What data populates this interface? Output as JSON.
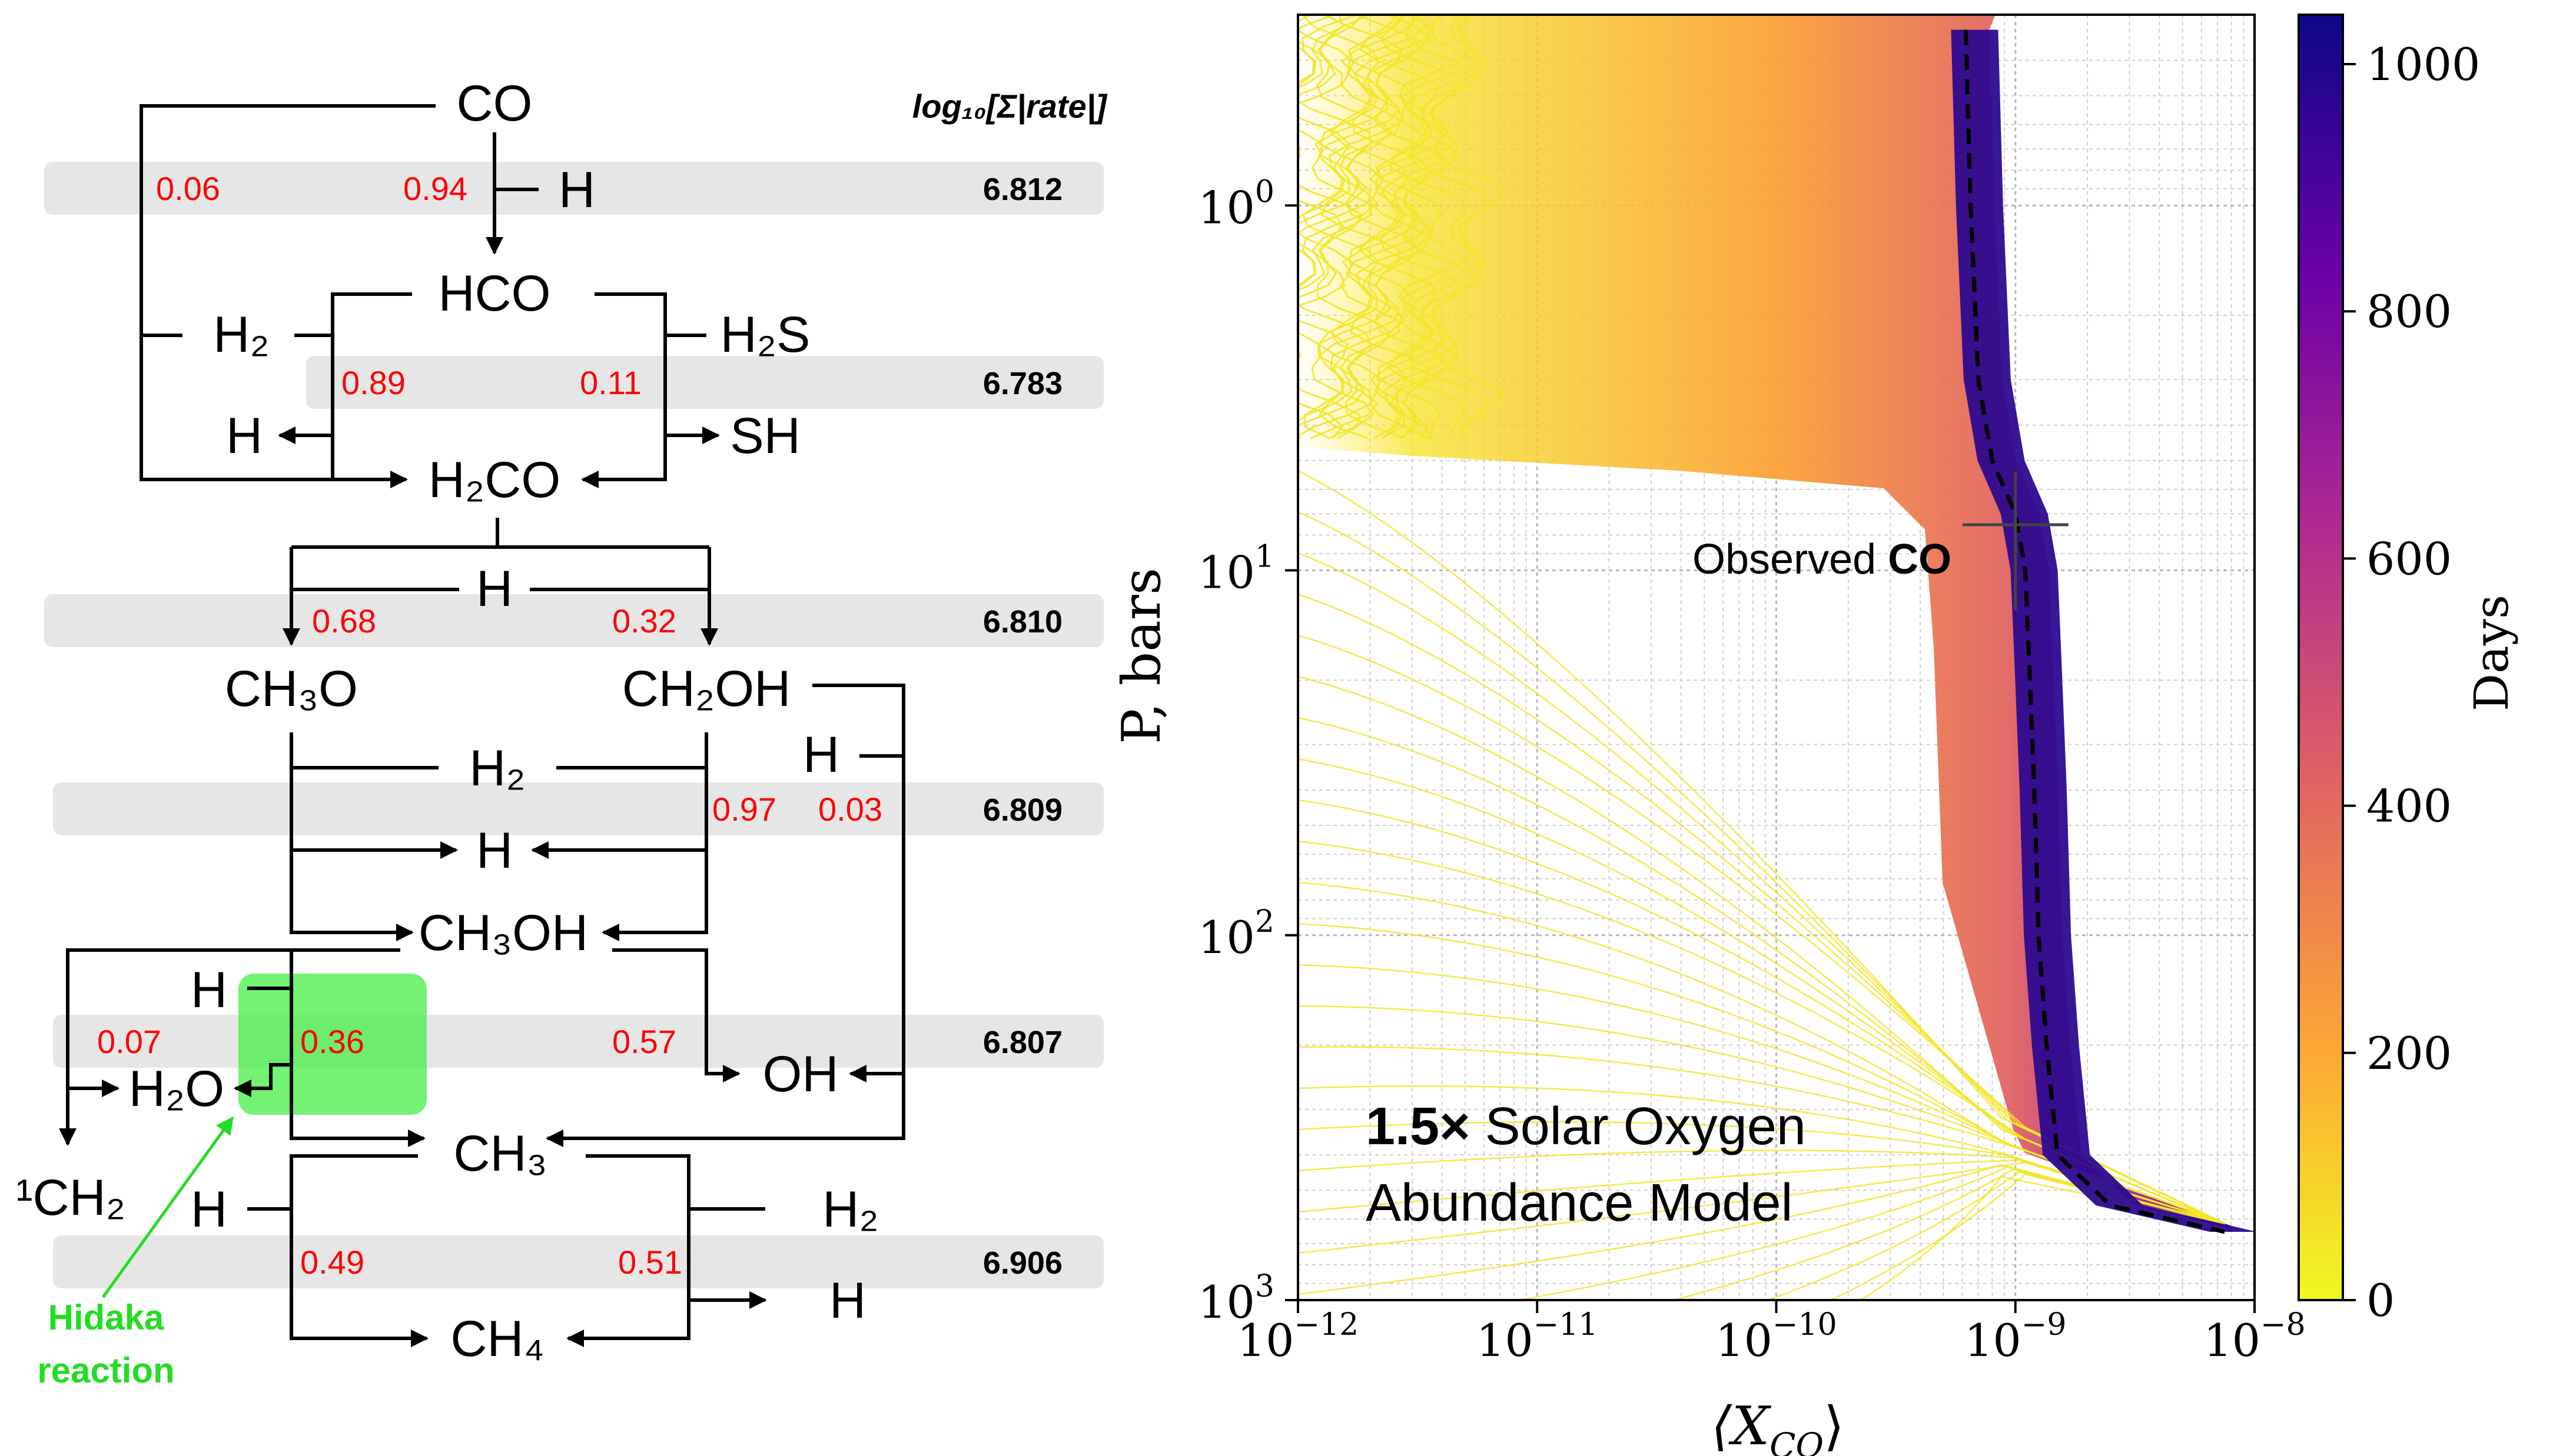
{
  "network": {
    "rate_header": "log₁₀[Σ|rate|]",
    "species": {
      "co": "CO",
      "h_in1": "H",
      "hco": "HCO",
      "h2_in": "H₂",
      "h2s_in": "H₂S",
      "h_out1": "H",
      "sh_out": "SH",
      "h2co": "H₂CO",
      "h_in2": "H",
      "ch3o": "CH₃O",
      "ch2oh": "CH₂OH",
      "h2_in2": "H₂",
      "h_in3": "H",
      "h_out2": "H",
      "ch3oh": "CH₃OH",
      "h_in4": "H",
      "oh_out": "OH",
      "h2o_out": "H₂O",
      "ch2_out": "¹CH₂",
      "ch3": "CH₃",
      "h_in5": "H",
      "h2_out": "H₂",
      "h_out3": "H",
      "ch4": "CH₄"
    },
    "branch_fractions": {
      "co_left": "0.06",
      "co_right": "0.94",
      "hco_left": "0.89",
      "hco_right": "0.11",
      "h2co_left": "0.68",
      "h2co_right": "0.32",
      "ch2oh_left": "0.97",
      "ch2oh_right": "0.03",
      "ch3oh_a": "0.07",
      "ch3oh_b": "0.36",
      "ch3oh_c": "0.57",
      "ch3_left": "0.49",
      "ch3_right": "0.51"
    },
    "rates": [
      "6.812",
      "6.783",
      "6.810",
      "6.809",
      "6.807",
      "6.906"
    ],
    "highlight_label_line1": "Hidaka",
    "highlight_label_line2": "reaction",
    "colors": {
      "highlight": "#44ee44",
      "band": "#e6e6e6",
      "fraction": "#ff0000",
      "annotation": "#22dd22"
    }
  },
  "plot": {
    "ylabel": "P, bars",
    "xlabel": "⟨X",
    "xlabel_sub": "CO",
    "xlabel_close": "⟩",
    "x_ticks": [
      {
        "base": "10",
        "exp": "−12"
      },
      {
        "base": "10",
        "exp": "−11"
      },
      {
        "base": "10",
        "exp": "−10"
      },
      {
        "base": "10",
        "exp": "−9"
      },
      {
        "base": "10",
        "exp": "−8"
      }
    ],
    "y_ticks": [
      {
        "base": "10",
        "exp": "0"
      },
      {
        "base": "10",
        "exp": "1"
      },
      {
        "base": "10",
        "exp": "2"
      },
      {
        "base": "10",
        "exp": "3"
      }
    ],
    "observed_label": "Observed ",
    "observed_bold": "CO",
    "model_bold": "1.5×",
    "model_line1_rest": " Solar Oxygen",
    "model_line2": "Abundance Model",
    "colorbar_label": "Days",
    "colorbar_ticks": [
      "1000",
      "800",
      "600",
      "400",
      "200",
      "0"
    ]
  },
  "chart_data": {
    "type": "line",
    "xlabel": "⟨X_CO⟩",
    "ylabel": "P, bars",
    "x_scale": "log",
    "y_scale": "log",
    "y_inverted": true,
    "xlim": [
      1e-12,
      1e-08
    ],
    "ylim": [
      1000,
      0.3
    ],
    "grid": true,
    "colormap": "plasma",
    "colorbar": {
      "label": "Days",
      "range": [
        0,
        1040
      ],
      "ticks": [
        0,
        200,
        400,
        600,
        800,
        1000
      ]
    },
    "series": [
      {
        "name": "Days",
        "x": [
          6.2e-10,
          6.5e-10,
          7e-10,
          8e-10,
          1e-09,
          1.1e-09,
          1.15e-09,
          1.2e-09,
          1.25e-09,
          1.35e-09,
          1.5e-09,
          2.5e-09,
          7.5e-09
        ],
        "y": [
          0.33,
          1,
          3,
          5,
          7,
          10,
          20,
          40,
          100,
          200,
          400,
          550,
          650
        ]
      }
    ],
    "observation": {
      "x": 1e-09,
      "y": 7.5,
      "label": "Observed CO"
    }
  }
}
